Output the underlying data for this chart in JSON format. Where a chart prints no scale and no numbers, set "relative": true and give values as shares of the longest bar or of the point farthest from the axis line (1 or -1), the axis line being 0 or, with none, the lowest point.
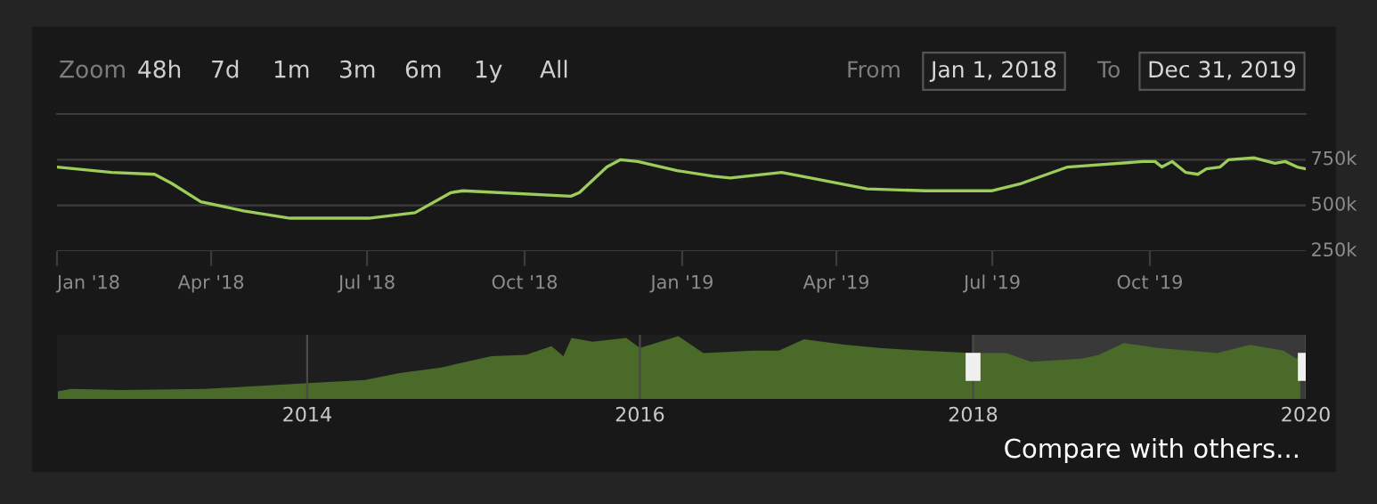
{
  "chart_data": [
    {
      "type": "line",
      "grid": "y",
      "legend": false,
      "marker": "none",
      "line_style": "solid",
      "xlim": [
        "2018-01-01",
        "2019-12-31"
      ],
      "xticks": [
        {
          "value": "2018-01-01",
          "label": "Jan '18"
        },
        {
          "value": "2018-04-01",
          "label": "Apr '18"
        },
        {
          "value": "2018-07-01",
          "label": "Jul '18"
        },
        {
          "value": "2018-10-01",
          "label": "Oct '18"
        },
        {
          "value": "2019-01-01",
          "label": "Jan '19"
        },
        {
          "value": "2019-04-01",
          "label": "Apr '19"
        },
        {
          "value": "2019-07-01",
          "label": "Jul '19"
        },
        {
          "value": "2019-10-01",
          "label": "Oct '19"
        }
      ],
      "ylim": [
        250000,
        1000000
      ],
      "yticks": [
        {
          "value": 250000,
          "label": "250k"
        },
        {
          "value": 500000,
          "label": "500k"
        },
        {
          "value": 750000,
          "label": "750k"
        }
      ],
      "series": [
        {
          "color": "#9ccc5a",
          "x": [
            "2018-01-01",
            "2018-02-02",
            "2018-02-27",
            "2018-03-09",
            "2018-03-26",
            "2018-04-20",
            "2018-05-17",
            "2018-07-02",
            "2018-07-29",
            "2018-08-19",
            "2018-08-26",
            "2018-10-28",
            "2018-11-02",
            "2018-11-18",
            "2018-11-26",
            "2018-12-06",
            "2018-12-29",
            "2019-01-19",
            "2019-01-29",
            "2019-02-28",
            "2019-03-17",
            "2019-04-19",
            "2019-05-23",
            "2019-07-01",
            "2019-07-18",
            "2019-08-14",
            "2019-09-27",
            "2019-10-04",
            "2019-10-08",
            "2019-10-14",
            "2019-10-22",
            "2019-10-29",
            "2019-11-03",
            "2019-11-11",
            "2019-11-16",
            "2019-12-01",
            "2019-12-13",
            "2019-12-19",
            "2019-12-26",
            "2019-12-31"
          ],
          "values": [
            710000,
            680000,
            670000,
            620000,
            520000,
            470000,
            430000,
            430000,
            460000,
            570000,
            580000,
            550000,
            570000,
            710000,
            750000,
            740000,
            690000,
            660000,
            650000,
            680000,
            650000,
            590000,
            580000,
            580000,
            620000,
            710000,
            740000,
            740000,
            710000,
            740000,
            680000,
            670000,
            700000,
            710000,
            750000,
            760000,
            730000,
            740000,
            710000,
            700000
          ]
        }
      ],
      "annotations": [
        "Zoom",
        "48h",
        "7d",
        "1m",
        "3m",
        "6m",
        "1y",
        "All",
        "From",
        "Jan 1, 2018",
        "To",
        "Dec 31, 2019",
        "Compare with others..."
      ]
    },
    {
      "type": "area",
      "relative": true,
      "grid": "x",
      "legend": false,
      "xlim": [
        "2012-07-01",
        "2020-01-01"
      ],
      "xticks": [
        {
          "value": "2014-01-01",
          "label": "2014"
        },
        {
          "value": "2016-01-01",
          "label": "2016"
        },
        {
          "value": "2018-01-01",
          "label": "2018"
        },
        {
          "value": "2020-01-01",
          "label": "2020"
        }
      ],
      "bands": [
        {
          "axis": "x",
          "from": "2018-01-01",
          "to": "2019-12-31",
          "color": "#ffffff"
        }
      ],
      "series": [
        {
          "color": "#4a6a2a",
          "x": [
            "2012-07-03",
            "2012-08-01",
            "2012-11-20",
            "2013-05-22",
            "2013-10-18",
            "2014-01-20",
            "2014-05-08",
            "2014-07-22",
            "2014-10-22",
            "2015-02-09",
            "2015-04-26",
            "2015-06-21",
            "2015-07-17",
            "2015-08-04",
            "2015-09-19",
            "2015-12-02",
            "2016-01-01",
            "2016-03-25",
            "2016-05-19",
            "2016-09-07",
            "2016-11-01",
            "2016-12-26",
            "2017-03-28",
            "2017-06-10",
            "2017-09-11",
            "2018-01-01",
            "2018-03-15",
            "2018-05-08",
            "2018-08-28",
            "2018-10-04",
            "2018-11-28",
            "2019-02-11",
            "2019-06-20",
            "2019-09-01",
            "2019-11-13",
            "2019-12-11",
            "2019-12-20"
          ],
          "values": [
            0.12,
            0.16,
            0.14,
            0.16,
            0.22,
            0.26,
            0.3,
            0.41,
            0.5,
            0.68,
            0.7,
            0.84,
            0.68,
            0.97,
            0.91,
            0.97,
            0.81,
            1.0,
            0.73,
            0.77,
            0.77,
            0.95,
            0.86,
            0.81,
            0.77,
            0.73,
            0.73,
            0.59,
            0.64,
            0.7,
            0.89,
            0.81,
            0.73,
            0.86,
            0.77,
            0.64,
            0.73
          ]
        }
      ]
    }
  ]
}
